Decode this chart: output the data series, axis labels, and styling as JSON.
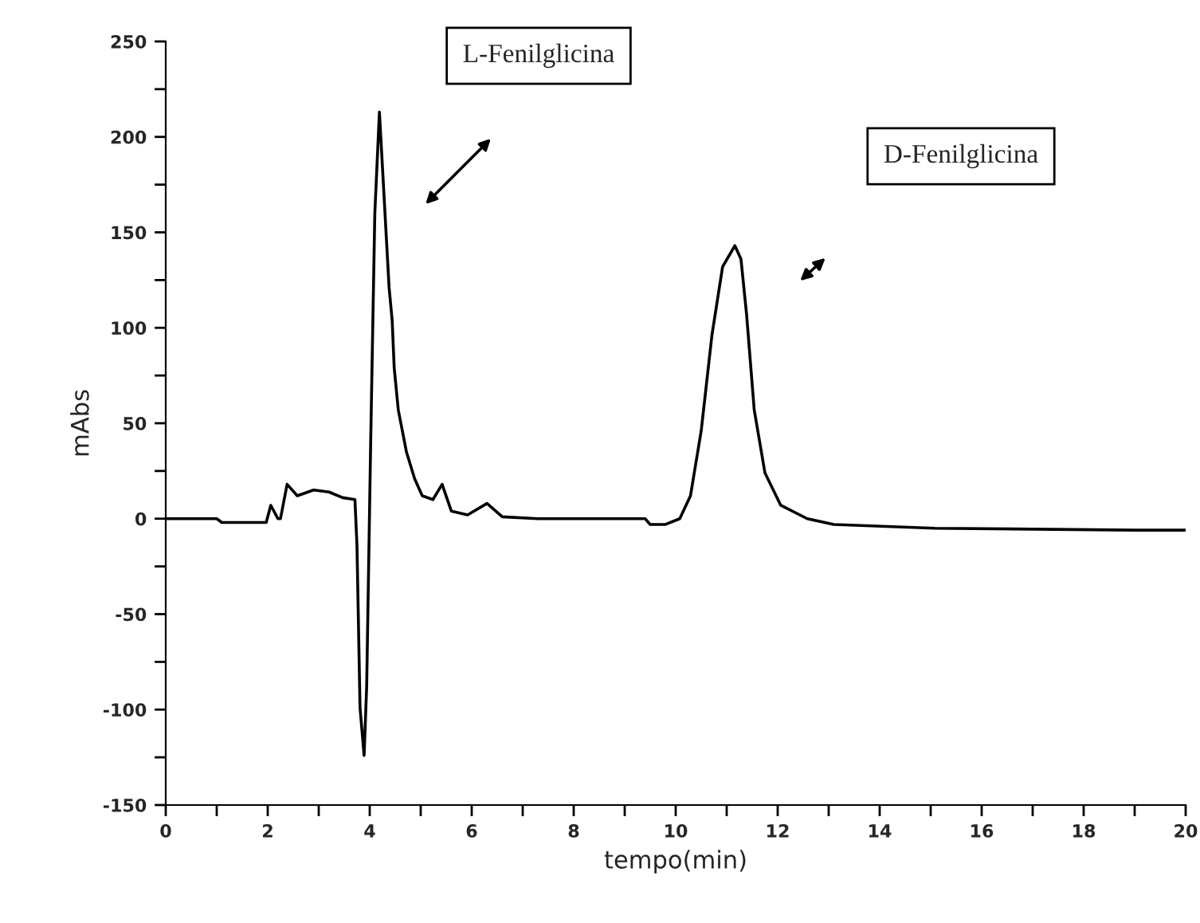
{
  "chart_data": {
    "type": "line",
    "xlabel": "tempo(min)",
    "ylabel": "mAbs",
    "series": [
      {
        "color": "#000000",
        "x": [
          0,
          1.0,
          1.1,
          1.97,
          2.06,
          2.2,
          2.25,
          2.38,
          2.58,
          2.9,
          3.2,
          3.47,
          3.71,
          3.75,
          3.81,
          3.89,
          3.94,
          4.02,
          4.1,
          4.19,
          4.38,
          4.44,
          4.48,
          4.56,
          4.72,
          4.88,
          5.03,
          5.24,
          5.42,
          5.6,
          5.92,
          6.3,
          6.6,
          7.3,
          9.4,
          9.5,
          9.8,
          10.08,
          10.29,
          10.5,
          10.71,
          10.92,
          11.16,
          11.28,
          11.39,
          11.54,
          11.75,
          12.06,
          12.58,
          13.1,
          15.08,
          19.0,
          20
        ],
        "values": [
          0,
          0,
          -2,
          -2,
          7,
          0,
          0,
          18,
          12,
          15,
          14,
          11,
          10,
          -14,
          -99,
          -124,
          -88,
          42,
          160,
          213,
          121,
          104,
          79,
          57,
          35,
          21,
          12,
          10,
          18,
          4,
          2,
          8,
          1,
          0,
          0,
          -3,
          -3,
          0,
          12,
          46,
          96,
          132,
          143,
          136,
          107,
          57,
          24,
          7,
          0,
          -3,
          -5,
          -6,
          -6
        ]
      }
    ],
    "xlim": [
      0,
      20
    ],
    "ylim": [
      -150,
      250
    ],
    "xticks": [
      0,
      {
        "value": 1,
        "label": null
      },
      2,
      {
        "value": 3,
        "label": null
      },
      4,
      {
        "value": 5,
        "label": null
      },
      6,
      {
        "value": 7,
        "label": null
      },
      8,
      {
        "value": 9,
        "label": null
      },
      10,
      {
        "value": 11,
        "label": null
      },
      12,
      {
        "value": 13,
        "label": null
      },
      14,
      {
        "value": 15,
        "label": null
      },
      16,
      {
        "value": 17,
        "label": null
      },
      18,
      {
        "value": 19,
        "label": null
      },
      20
    ],
    "yticks": [
      -150,
      {
        "value": -125,
        "label": null
      },
      -100,
      {
        "value": -75,
        "label": null
      },
      -50,
      {
        "value": -25,
        "label": null
      },
      0,
      {
        "value": 25,
        "label": null
      },
      50,
      {
        "value": 75,
        "label": null
      },
      100,
      {
        "value": 125,
        "label": null
      },
      150,
      {
        "value": 175,
        "label": null
      },
      200,
      {
        "value": 225,
        "label": null
      },
      250
    ],
    "annotations": [
      "L-Fenilglicina",
      "D-Fenilglicina"
    ],
    "grid": false,
    "legend": false,
    "marker": "none",
    "line_style": "solid"
  }
}
